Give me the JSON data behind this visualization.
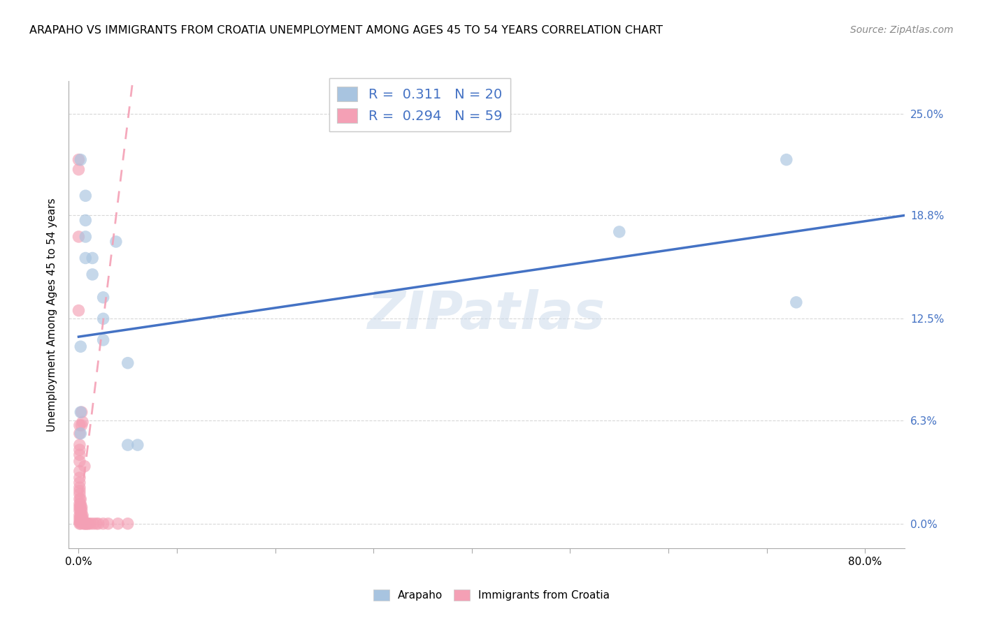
{
  "title": "ARAPAHO VS IMMIGRANTS FROM CROATIA UNEMPLOYMENT AMONG AGES 45 TO 54 YEARS CORRELATION CHART",
  "source": "Source: ZipAtlas.com",
  "xlabel_tick_vals": [
    0.0,
    0.1,
    0.2,
    0.3,
    0.4,
    0.5,
    0.6,
    0.7,
    0.8
  ],
  "xlabel_label_vals": [
    0.0,
    0.8
  ],
  "xlabel_labels": [
    "0.0%",
    "80.0%"
  ],
  "ylabel_ticks": [
    "0.0%",
    "6.3%",
    "12.5%",
    "18.8%",
    "25.0%"
  ],
  "ylabel_tick_vals": [
    0.0,
    0.063,
    0.125,
    0.188,
    0.25
  ],
  "ylabel": "Unemployment Among Ages 45 to 54 years",
  "xlim": [
    -0.01,
    0.84
  ],
  "ylim": [
    -0.015,
    0.27
  ],
  "legend_r1": "0.311",
  "legend_n1": "20",
  "legend_r2": "0.294",
  "legend_n2": "59",
  "watermark": "ZIPatlas",
  "arapaho_color": "#a8c4e0",
  "croatia_color": "#f4a0b5",
  "arapaho_scatter": [
    [
      0.002,
      0.222
    ],
    [
      0.007,
      0.2
    ],
    [
      0.007,
      0.185
    ],
    [
      0.007,
      0.175
    ],
    [
      0.007,
      0.162
    ],
    [
      0.014,
      0.162
    ],
    [
      0.014,
      0.152
    ],
    [
      0.025,
      0.138
    ],
    [
      0.025,
      0.125
    ],
    [
      0.025,
      0.112
    ],
    [
      0.002,
      0.108
    ],
    [
      0.038,
      0.172
    ],
    [
      0.05,
      0.098
    ],
    [
      0.05,
      0.048
    ],
    [
      0.06,
      0.048
    ],
    [
      0.002,
      0.068
    ],
    [
      0.002,
      0.055
    ],
    [
      0.55,
      0.178
    ],
    [
      0.72,
      0.222
    ],
    [
      0.73,
      0.135
    ]
  ],
  "croatia_scatter": [
    [
      0.0,
      0.222
    ],
    [
      0.0,
      0.216
    ],
    [
      0.001,
      0.06
    ],
    [
      0.001,
      0.055
    ],
    [
      0.001,
      0.048
    ],
    [
      0.001,
      0.045
    ],
    [
      0.001,
      0.042
    ],
    [
      0.001,
      0.038
    ],
    [
      0.001,
      0.032
    ],
    [
      0.001,
      0.028
    ],
    [
      0.001,
      0.025
    ],
    [
      0.001,
      0.022
    ],
    [
      0.001,
      0.02
    ],
    [
      0.001,
      0.018
    ],
    [
      0.001,
      0.015
    ],
    [
      0.001,
      0.012
    ],
    [
      0.001,
      0.01
    ],
    [
      0.001,
      0.008
    ],
    [
      0.001,
      0.005
    ],
    [
      0.001,
      0.003
    ],
    [
      0.001,
      0.001
    ],
    [
      0.001,
      0.0
    ],
    [
      0.002,
      0.015
    ],
    [
      0.002,
      0.012
    ],
    [
      0.002,
      0.01
    ],
    [
      0.002,
      0.008
    ],
    [
      0.002,
      0.005
    ],
    [
      0.002,
      0.003
    ],
    [
      0.002,
      0.001
    ],
    [
      0.002,
      0.0
    ],
    [
      0.003,
      0.01
    ],
    [
      0.003,
      0.008
    ],
    [
      0.003,
      0.005
    ],
    [
      0.003,
      0.003
    ],
    [
      0.003,
      0.001
    ],
    [
      0.004,
      0.005
    ],
    [
      0.004,
      0.003
    ],
    [
      0.004,
      0.001
    ],
    [
      0.004,
      0.062
    ],
    [
      0.005,
      0.001
    ],
    [
      0.005,
      0.0
    ],
    [
      0.006,
      0.0
    ],
    [
      0.006,
      0.035
    ],
    [
      0.007,
      0.0
    ],
    [
      0.008,
      0.0
    ],
    [
      0.009,
      0.0
    ],
    [
      0.01,
      0.0
    ],
    [
      0.012,
      0.0
    ],
    [
      0.015,
      0.0
    ],
    [
      0.018,
      0.0
    ],
    [
      0.02,
      0.0
    ],
    [
      0.025,
      0.0
    ],
    [
      0.03,
      0.0
    ],
    [
      0.04,
      0.0
    ],
    [
      0.05,
      0.0
    ],
    [
      0.0,
      0.13
    ],
    [
      0.0,
      0.175
    ],
    [
      0.003,
      0.06
    ],
    [
      0.003,
      0.068
    ]
  ],
  "arapaho_line_x": [
    0.0,
    0.84
  ],
  "arapaho_line_y": [
    0.114,
    0.188
  ],
  "croatia_line_x": [
    0.0,
    0.055
  ],
  "croatia_line_y": [
    0.002,
    0.27
  ],
  "grid_color": "#d8d8d8",
  "bg_color": "#ffffff"
}
